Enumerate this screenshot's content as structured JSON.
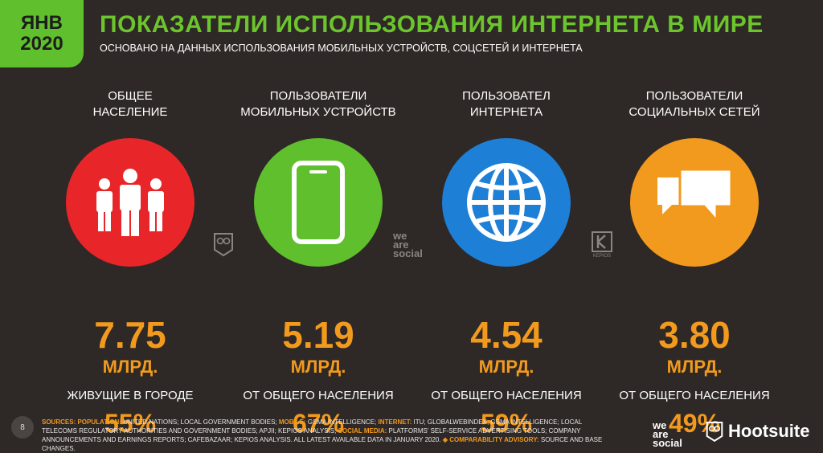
{
  "badge": {
    "month": "ЯНВ",
    "year": "2020"
  },
  "header": {
    "title": "ПОКАЗАТЕЛИ ИСПОЛЬЗОВАНИЯ ИНТЕРНЕТА В МИРЕ",
    "subtitle": "ОСНОВАНО НА ДАННЫХ ИСПОЛЬЗОВАНИЯ МОБИЛЬНЫХ УСТРОЙСТВ, СОЦСЕТЕЙ И ИНТЕРНЕТА"
  },
  "stats": [
    {
      "label1": "ОБЩЕЕ",
      "label2": "НАСЕЛЕНИЕ",
      "icon": "people-icon",
      "color": "#e8262a",
      "value": "7.75",
      "unit": "МЛРД.",
      "sub_label": "ЖИВУЩИЕ В ГОРОДЕ",
      "pct": "55%"
    },
    {
      "label1": "ПОЛЬЗОВАТЕЛИ",
      "label2": "МОБИЛЬНЫХ УСТРОЙСТВ",
      "icon": "mobile-phone-icon",
      "color": "#5fbf2d",
      "value": "5.19",
      "unit": "МЛРД.",
      "sub_label": "ОТ ОБЩЕГО НАСЕЛЕНИЯ",
      "pct": "67%"
    },
    {
      "label1": "ПОЛЬЗОВАТЕЛ",
      "label2": "ИНТЕРНЕТА",
      "icon": "globe-icon",
      "color": "#1e7fd6",
      "value": "4.54",
      "unit": "МЛРД.",
      "sub_label": "ОТ ОБЩЕГО НАСЕЛЕНИЯ",
      "pct": "59%"
    },
    {
      "label1": "ПОЛЬЗОВАТЕЛИ",
      "label2": "СОЦИАЛЬНЫХ СЕТЕЙ",
      "icon": "chat-bubbles-icon",
      "color": "#f29a1d",
      "value": "3.80",
      "unit": "МЛРД.",
      "sub_label": "ОТ ОБЩЕГО НАСЕЛЕНИЯ",
      "pct": "49%"
    }
  ],
  "footer": {
    "page_number": "8",
    "sources_label": "SOURCES:",
    "population_label": "POPULATION:",
    "population_text": "UNITED NATIONS; LOCAL GOVERNMENT BODIES;",
    "mobile_label": "MOBILE:",
    "mobile_text": "GSMA INTELLIGENCE;",
    "internet_label": "INTERNET:",
    "internet_text": "ITU; GLOBALWEBINDEX, GSMA INTELLIGENCE; LOCAL TELECOMS REGULATORY AUTHORITIES AND GOVERNMENT BODIES; APJII; KEPIOS ANALYSIS;",
    "social_label": "SOCIAL MEDIA:",
    "social_text": "PLATFORMS' SELF-SERVICE ADVERTISING TOOLS; COMPANY ANNOUNCEMENTS AND EARNINGS REPORTS; CAFEBAZAAR; KEPIOS ANALYSIS. ALL LATEST AVAILABLE DATA IN JANUARY 2020.",
    "advisory_label": "◈ COMPARABILITY ADVISORY:",
    "advisory_text": "SOURCE AND BASE CHANGES.",
    "logo_was": [
      "we",
      "are",
      "social"
    ],
    "logo_hootsuite": "Hootsuite",
    "kepios": "KEPIOS"
  }
}
